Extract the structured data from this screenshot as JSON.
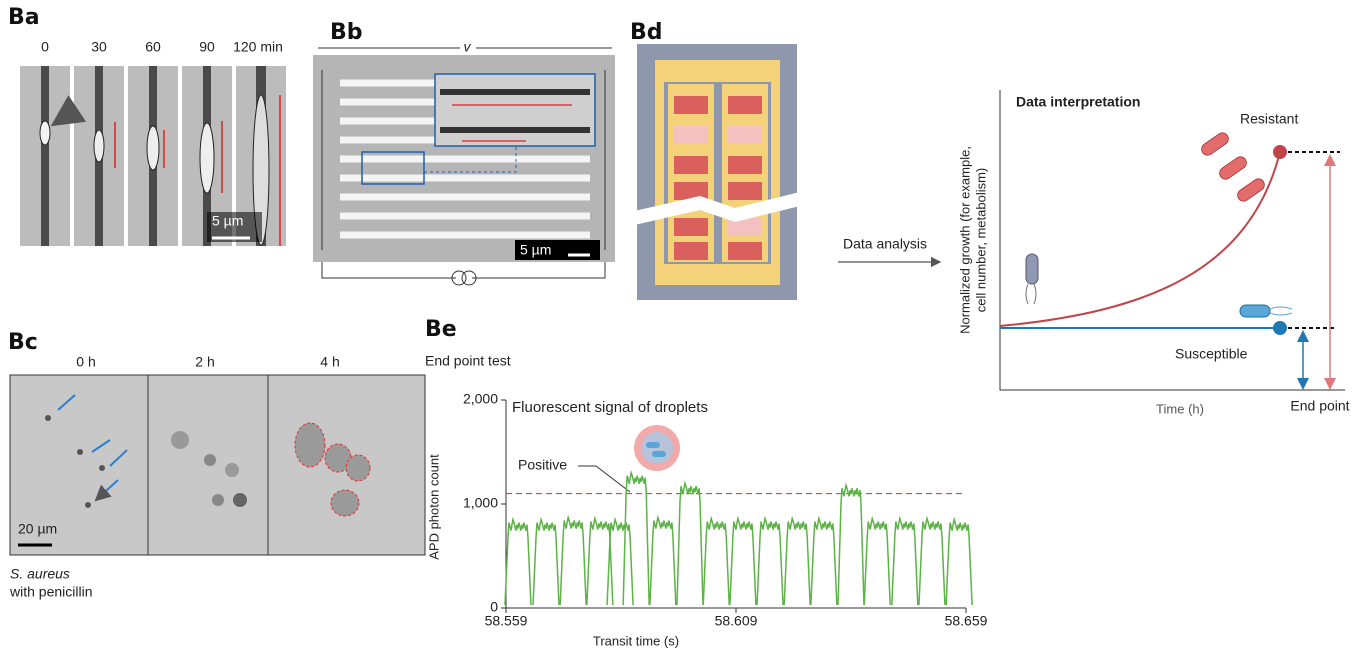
{
  "panels": {
    "ba": {
      "label": "Ba",
      "times": [
        "0",
        "30",
        "60",
        "90",
        "120 min"
      ],
      "scale_bar": "5 µm"
    },
    "bb": {
      "label": "Bb",
      "flow_label": "v",
      "scale_bar": "5 µm"
    },
    "bd": {
      "label": "Bd"
    },
    "bc": {
      "label": "Bc",
      "times": [
        "0 h",
        "2 h",
        "4 h"
      ],
      "scale_bar": "20 µm",
      "caption_species": "S. aureus",
      "caption_treatment": "with penicillin"
    },
    "be": {
      "label": "Be",
      "heading": "End point test"
    }
  },
  "arrow_label": "Data analysis",
  "interpretation": {
    "title": "Data interpretation",
    "resistant": "Resistant",
    "susceptible": "Susceptible",
    "y_label": [
      "Normalized growth (for example,",
      "cell number, metabolism)"
    ],
    "x_label": "Time (h)",
    "end_point": "End point"
  },
  "chart_data": {
    "type": "pulse",
    "title": "Fluorescent signal of droplets",
    "x_label": "Transit time (s)",
    "y_label": "APD photon count",
    "annotation": "Positive",
    "xlim": [
      58.559,
      58.659
    ],
    "ylim": [
      0,
      2000
    ],
    "xticks": [
      58.559,
      58.609,
      58.659
    ],
    "yticks": [
      0,
      {
        "value": 1000,
        "label": "1,000"
      },
      {
        "value": 2000,
        "label": "2,000"
      }
    ],
    "threshold": 1100,
    "threshold_color": "#c0392b",
    "color": "#5cb346",
    "series": [
      {
        "x": [
          58.5616,
          58.5677,
          58.5736,
          58.5794,
          58.5838,
          58.5873,
          58.5931,
          58.599,
          58.6047,
          58.6105,
          58.6164,
          58.6223,
          58.6281,
          58.634,
          58.6397,
          58.6457,
          58.6516,
          58.6575
        ],
        "values": [
          850,
          850,
          870,
          860,
          850,
          1300,
          870,
          1200,
          860,
          860,
          860,
          860,
          860,
          1180,
          860,
          860,
          860,
          850
        ]
      }
    ]
  }
}
